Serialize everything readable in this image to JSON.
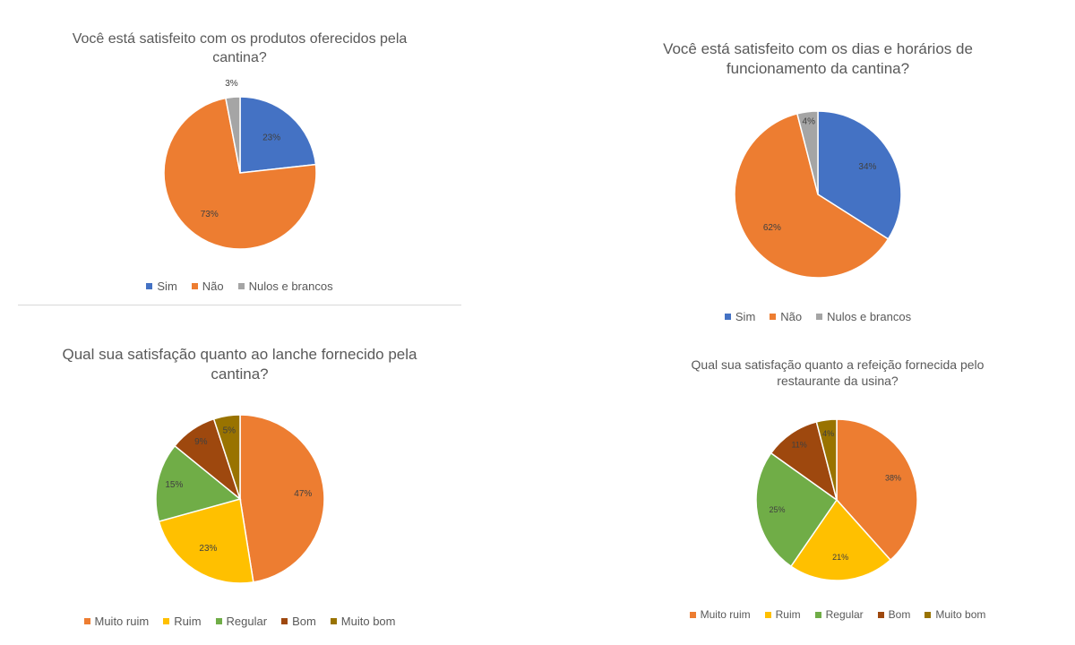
{
  "chart_data": [
    {
      "type": "pie",
      "title": "Você está satisfeito com os produtos oferecidos pela\ncantina?",
      "categories": [
        "Sim",
        "Não",
        "Nulos e brancos"
      ],
      "values": [
        23,
        73,
        3
      ],
      "data_labels": [
        "23%",
        "73%",
        "3%"
      ],
      "colors": [
        "#4472C4",
        "#ED7D31",
        "#A5A5A5"
      ],
      "legend": "bottom"
    },
    {
      "type": "pie",
      "title": "Você está satisfeito com os dias e horários de\nfuncionamento da cantina?",
      "categories": [
        "Sim",
        "Não",
        "Nulos e brancos"
      ],
      "values": [
        34,
        62,
        4
      ],
      "data_labels": [
        "34%",
        "62%",
        "4%"
      ],
      "colors": [
        "#4472C4",
        "#ED7D31",
        "#A5A5A5"
      ],
      "legend": "bottom"
    },
    {
      "type": "pie",
      "title": "Qual sua satisfação quanto ao lanche fornecido pela\ncantina?",
      "categories": [
        "Muito ruim",
        "Ruim",
        "Regular",
        "Bom",
        "Muito bom"
      ],
      "values": [
        47,
        23,
        15,
        9,
        5
      ],
      "data_labels": [
        "47%",
        "23%",
        "15%",
        "9%",
        "5%"
      ],
      "colors": [
        "#ED7D31",
        "#FFC000",
        "#70AD47",
        "#9E480E",
        "#997300"
      ],
      "legend": "bottom"
    },
    {
      "type": "pie",
      "title": "Qual sua satisfação quanto a refeição fornecida pelo\nrestaurante da usina?",
      "categories": [
        "Muito ruim",
        "Ruim",
        "Regular",
        "Bom",
        "Muito bom"
      ],
      "values": [
        38,
        21,
        25,
        11,
        4
      ],
      "data_labels": [
        "38%",
        "21%",
        "25%",
        "11%",
        "4%"
      ],
      "colors": [
        "#ED7D31",
        "#FFC000",
        "#70AD47",
        "#9E480E",
        "#997300"
      ],
      "legend": "bottom"
    }
  ]
}
